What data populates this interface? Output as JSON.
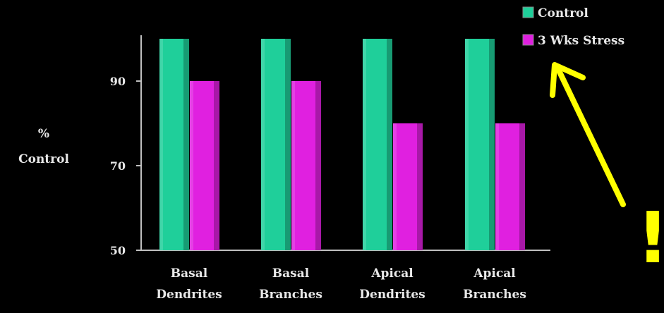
{
  "chart_data": {
    "type": "bar",
    "categories": [
      [
        "Basal",
        "Dendrites"
      ],
      [
        "Basal",
        "Branches"
      ],
      [
        "Apical",
        "Dendrites"
      ],
      [
        "Apical",
        "Branches"
      ]
    ],
    "series": [
      {
        "name": "Control",
        "values": [
          100,
          100,
          100,
          100
        ],
        "color": "#1fcf9a"
      },
      {
        "name": "3 Wks Stress",
        "values": [
          90,
          90,
          80,
          80
        ],
        "color": "#e020e0"
      }
    ],
    "ylabel": [
      "%",
      "Control"
    ],
    "yticks": [
      50,
      70,
      90
    ],
    "ylim": [
      50,
      100
    ],
    "legend": "top-right",
    "grid": false
  },
  "annotation": {
    "arrow_color": "#ffff00",
    "exclamation": "!"
  }
}
